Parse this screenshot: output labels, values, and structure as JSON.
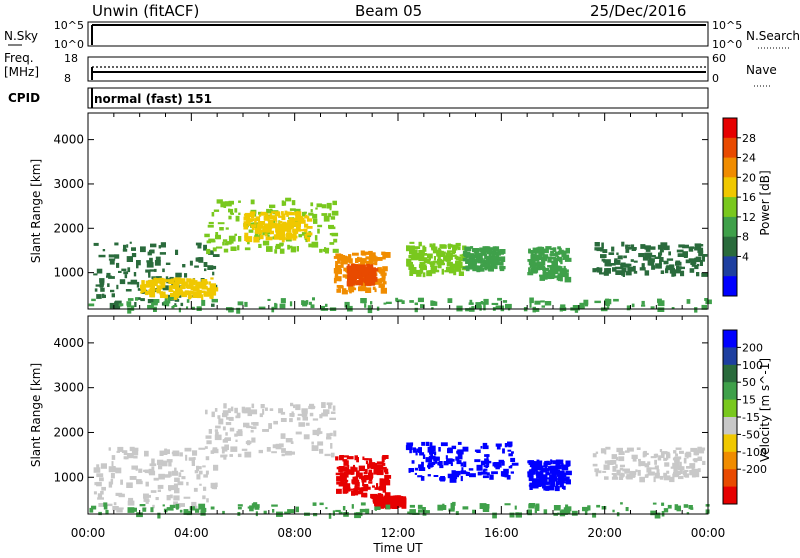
{
  "header": {
    "station": "Unwin (fitACF)",
    "beam": "Beam 05",
    "date": "25/Dec/2016"
  },
  "top_panels": {
    "nsky": {
      "label": "N.Sky",
      "left_ticks": [
        "10^5",
        "10^0"
      ],
      "right_ticks": [
        "10^5",
        "10^0"
      ],
      "right_label": "N.Search"
    },
    "freq": {
      "label_line1": "Freq.",
      "label_line2": "[MHz]",
      "left_ticks": [
        "18",
        "8"
      ],
      "right_ticks": [
        "60",
        "0"
      ],
      "right_label": "Nave"
    },
    "cpid": {
      "label": "CPID",
      "value": "normal (fast) 151"
    }
  },
  "x_axis": {
    "label": "Time UT",
    "ticks": [
      "00:00",
      "04:00",
      "08:00",
      "12:00",
      "16:00",
      "20:00",
      "00:00"
    ]
  },
  "chart_data": [
    {
      "type": "heatmap",
      "panel": "power",
      "ylabel": "Slant Range [km]",
      "ylim": [
        180,
        4600
      ],
      "xlim_hours": [
        0,
        24
      ],
      "y_ticks": [
        "4000",
        "3000",
        "2000",
        "1000"
      ],
      "colorbar": {
        "label": "Power [dB]",
        "ticks": [
          "28",
          "24",
          "20",
          "16",
          "12",
          "8",
          "4"
        ],
        "colors": [
          "#0000ff",
          "#1e3fa0",
          "#2a6b3c",
          "#3fa04a",
          "#79c81e",
          "#f0c800",
          "#f08c00",
          "#e84a00",
          "#e60000"
        ]
      },
      "regions": [
        {
          "t0": 0.2,
          "t1": 5.0,
          "r0": 300,
          "r1": 1700,
          "level": 8
        },
        {
          "t0": 2.0,
          "t1": 4.8,
          "r0": 500,
          "r1": 900,
          "level": 20
        },
        {
          "t0": 4.5,
          "t1": 9.5,
          "r0": 1500,
          "r1": 2700,
          "level": 14
        },
        {
          "t0": 6.0,
          "t1": 8.5,
          "r0": 1800,
          "r1": 2400,
          "level": 20
        },
        {
          "t0": 9.5,
          "t1": 11.5,
          "r0": 600,
          "r1": 1500,
          "level": 22
        },
        {
          "t0": 10.0,
          "t1": 11.0,
          "r0": 800,
          "r1": 1200,
          "level": 28
        },
        {
          "t0": 12.3,
          "t1": 14.5,
          "r0": 1000,
          "r1": 1700,
          "level": 14
        },
        {
          "t0": 14.5,
          "t1": 16.0,
          "r0": 1100,
          "r1": 1600,
          "level": 12
        },
        {
          "t0": 17.0,
          "t1": 18.5,
          "r0": 900,
          "r1": 1600,
          "level": 12
        },
        {
          "t0": 19.5,
          "t1": 23.8,
          "r0": 1000,
          "r1": 1700,
          "level": 6
        },
        {
          "t0": 0.0,
          "t1": 24.0,
          "r0": 200,
          "r1": 450,
          "level": 10
        }
      ]
    },
    {
      "type": "heatmap",
      "panel": "velocity",
      "ylabel": "Slant Range [km]",
      "ylim": [
        180,
        4600
      ],
      "xlim_hours": [
        0,
        24
      ],
      "y_ticks": [
        "4000",
        "3000",
        "2000",
        "1000"
      ],
      "colorbar": {
        "label": "Velocity [m s^-1]",
        "ticks": [
          "200",
          "100",
          "50",
          "15",
          "-15",
          "-50",
          "-100",
          "-200"
        ],
        "colors": [
          "#0000ff",
          "#1e3fa0",
          "#2a6b3c",
          "#3fa04a",
          "#79c81e",
          "#c8c8c8",
          "#f0c800",
          "#f08c00",
          "#e84a00",
          "#e60000"
        ]
      },
      "regions": [
        {
          "t0": 0.2,
          "t1": 5.0,
          "r0": 300,
          "r1": 1700,
          "vel": 0
        },
        {
          "t0": 4.5,
          "t1": 9.5,
          "r0": 1500,
          "r1": 2700,
          "vel": 0
        },
        {
          "t0": 9.5,
          "t1": 11.5,
          "r0": 600,
          "r1": 1500,
          "vel": -150
        },
        {
          "t0": 11.0,
          "t1": 12.2,
          "r0": 400,
          "r1": 600,
          "vel": -200
        },
        {
          "t0": 12.3,
          "t1": 16.5,
          "r0": 1000,
          "r1": 1800,
          "vel": 220
        },
        {
          "t0": 17.0,
          "t1": 18.5,
          "r0": 800,
          "r1": 1400,
          "vel": 220
        },
        {
          "t0": 19.5,
          "t1": 23.8,
          "r0": 1000,
          "r1": 1700,
          "vel": 0
        },
        {
          "t0": 0.0,
          "t1": 24.0,
          "r0": 200,
          "r1": 450,
          "vel": 30
        }
      ]
    }
  ]
}
